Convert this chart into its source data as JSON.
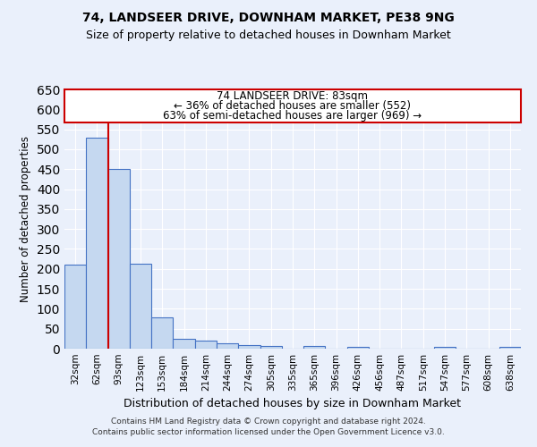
{
  "title1": "74, LANDSEER DRIVE, DOWNHAM MARKET, PE38 9NG",
  "title2": "Size of property relative to detached houses in Downham Market",
  "xlabel": "Distribution of detached houses by size in Downham Market",
  "ylabel": "Number of detached properties",
  "footnote1": "Contains HM Land Registry data © Crown copyright and database right 2024.",
  "footnote2": "Contains public sector information licensed under the Open Government Licence v3.0.",
  "annotation_line1": "74 LANDSEER DRIVE: 83sqm",
  "annotation_line2": "← 36% of detached houses are smaller (552)",
  "annotation_line3": "63% of semi-detached houses are larger (969) →",
  "bar_color": "#c5d8f0",
  "bar_edge_color": "#4472c4",
  "vline_color": "#cc0000",
  "background_color": "#eaf0fb",
  "grid_color": "#ffffff",
  "categories": [
    "32sqm",
    "62sqm",
    "93sqm",
    "123sqm",
    "153sqm",
    "184sqm",
    "214sqm",
    "244sqm",
    "274sqm",
    "305sqm",
    "335sqm",
    "365sqm",
    "396sqm",
    "426sqm",
    "456sqm",
    "487sqm",
    "517sqm",
    "547sqm",
    "577sqm",
    "608sqm",
    "638sqm"
  ],
  "values": [
    210,
    530,
    450,
    213,
    78,
    25,
    20,
    14,
    10,
    7,
    0,
    6,
    0,
    5,
    0,
    0,
    0,
    5,
    0,
    0,
    5
  ],
  "ylim": [
    0,
    650
  ],
  "yticks": [
    0,
    50,
    100,
    150,
    200,
    250,
    300,
    350,
    400,
    450,
    500,
    550,
    600,
    650
  ]
}
